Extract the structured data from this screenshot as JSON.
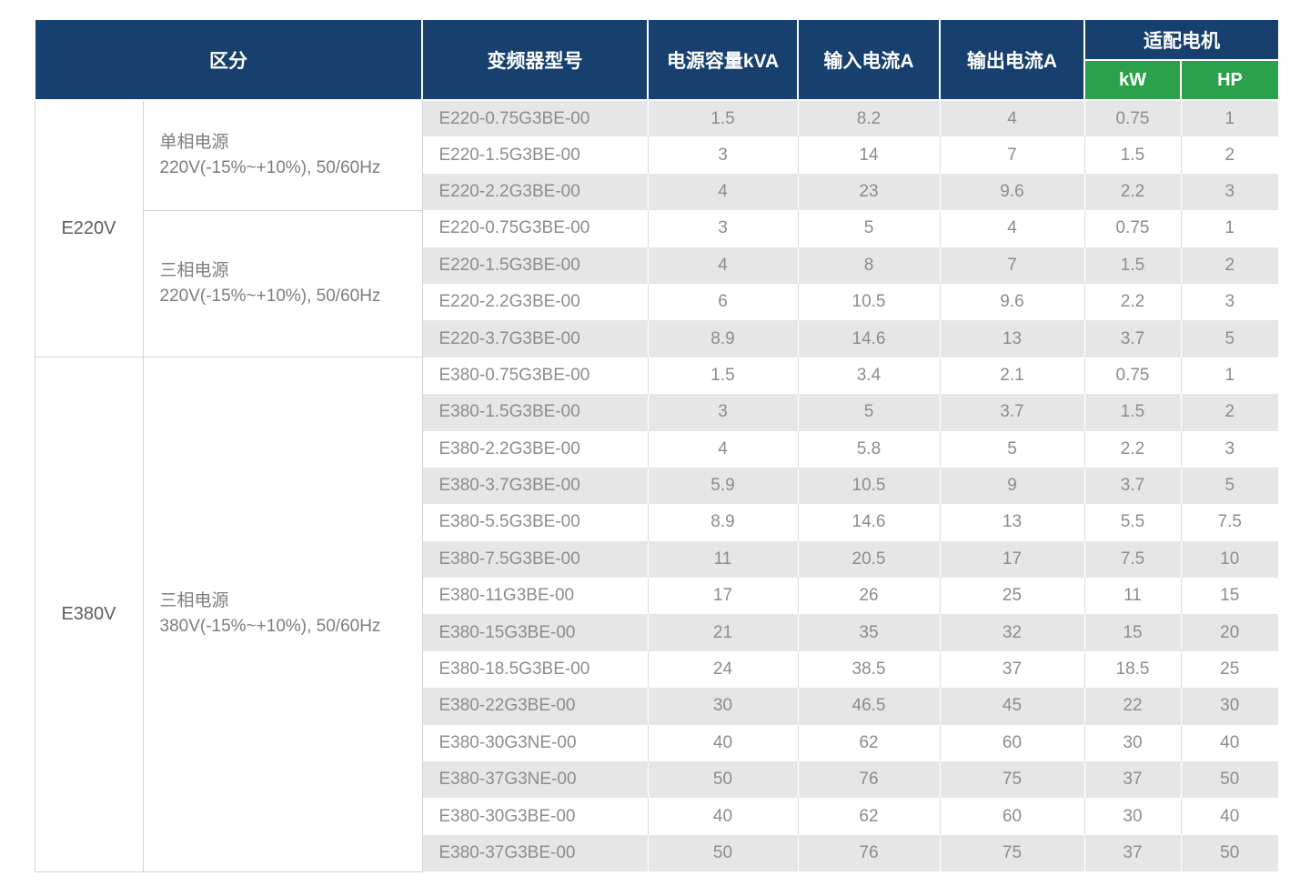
{
  "colors": {
    "header_navy": "#18406E",
    "motor_green": "#2BA14B",
    "stripe_gray": "#E6E6E6",
    "grid_line": "#D2D2D2"
  },
  "table": {
    "headers": {
      "category": "区分",
      "model": "变频器型号",
      "capacity": "电源容量kVA",
      "input_current": "输入电流A",
      "output_current": "输出电流A",
      "motor": "适配电机",
      "motor_kw": "kW",
      "motor_hp": "HP"
    },
    "groups": [
      {
        "voltage": "E220V",
        "sections": [
          {
            "phase": "单相电源",
            "spec": "220V(-15%~+10%), 50/60Hz",
            "rows": [
              {
                "model": "E220-0.75G3BE-00",
                "kva": "1.5",
                "input_a": "8.2",
                "output_a": "4",
                "kw": "0.75",
                "hp": "1"
              },
              {
                "model": "E220-1.5G3BE-00",
                "kva": "3",
                "input_a": "14",
                "output_a": "7",
                "kw": "1.5",
                "hp": "2"
              },
              {
                "model": "E220-2.2G3BE-00",
                "kva": "4",
                "input_a": "23",
                "output_a": "9.6",
                "kw": "2.2",
                "hp": "3"
              }
            ]
          },
          {
            "phase": "三相电源",
            "spec": "220V(-15%~+10%), 50/60Hz",
            "rows": [
              {
                "model": "E220-0.75G3BE-00",
                "kva": "3",
                "input_a": "5",
                "output_a": "4",
                "kw": "0.75",
                "hp": "1"
              },
              {
                "model": "E220-1.5G3BE-00",
                "kva": "4",
                "input_a": "8",
                "output_a": "7",
                "kw": "1.5",
                "hp": "2"
              },
              {
                "model": "E220-2.2G3BE-00",
                "kva": "6",
                "input_a": "10.5",
                "output_a": "9.6",
                "kw": "2.2",
                "hp": "3"
              },
              {
                "model": "E220-3.7G3BE-00",
                "kva": "8.9",
                "input_a": "14.6",
                "output_a": "13",
                "kw": "3.7",
                "hp": "5"
              }
            ]
          }
        ]
      },
      {
        "voltage": "E380V",
        "sections": [
          {
            "phase": "三相电源",
            "spec": "380V(-15%~+10%), 50/60Hz",
            "rows": [
              {
                "model": "E380-0.75G3BE-00",
                "kva": "1.5",
                "input_a": "3.4",
                "output_a": "2.1",
                "kw": "0.75",
                "hp": "1"
              },
              {
                "model": "E380-1.5G3BE-00",
                "kva": "3",
                "input_a": "5",
                "output_a": "3.7",
                "kw": "1.5",
                "hp": "2"
              },
              {
                "model": "E380-2.2G3BE-00",
                "kva": "4",
                "input_a": "5.8",
                "output_a": "5",
                "kw": "2.2",
                "hp": "3"
              },
              {
                "model": "E380-3.7G3BE-00",
                "kva": "5.9",
                "input_a": "10.5",
                "output_a": "9",
                "kw": "3.7",
                "hp": "5"
              },
              {
                "model": "E380-5.5G3BE-00",
                "kva": "8.9",
                "input_a": "14.6",
                "output_a": "13",
                "kw": "5.5",
                "hp": "7.5"
              },
              {
                "model": "E380-7.5G3BE-00",
                "kva": "11",
                "input_a": "20.5",
                "output_a": "17",
                "kw": "7.5",
                "hp": "10"
              },
              {
                "model": "E380-11G3BE-00",
                "kva": "17",
                "input_a": "26",
                "output_a": "25",
                "kw": "11",
                "hp": "15"
              },
              {
                "model": "E380-15G3BE-00",
                "kva": "21",
                "input_a": "35",
                "output_a": "32",
                "kw": "15",
                "hp": "20"
              },
              {
                "model": "E380-18.5G3BE-00",
                "kva": "24",
                "input_a": "38.5",
                "output_a": "37",
                "kw": "18.5",
                "hp": "25"
              },
              {
                "model": "E380-22G3BE-00",
                "kva": "30",
                "input_a": "46.5",
                "output_a": "45",
                "kw": "22",
                "hp": "30"
              },
              {
                "model": "E380-30G3NE-00",
                "kva": "40",
                "input_a": "62",
                "output_a": "60",
                "kw": "30",
                "hp": "40"
              },
              {
                "model": "E380-37G3NE-00",
                "kva": "50",
                "input_a": "76",
                "output_a": "75",
                "kw": "37",
                "hp": "50"
              },
              {
                "model": "E380-30G3BE-00",
                "kva": "40",
                "input_a": "62",
                "output_a": "60",
                "kw": "30",
                "hp": "40"
              },
              {
                "model": "E380-37G3BE-00",
                "kva": "50",
                "input_a": "76",
                "output_a": "75",
                "kw": "37",
                "hp": "50"
              }
            ]
          }
        ]
      }
    ]
  }
}
